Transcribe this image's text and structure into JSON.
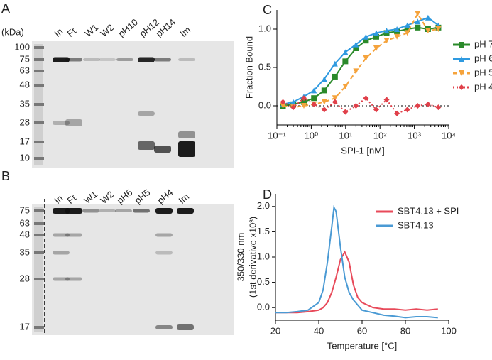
{
  "gels": [
    {
      "letter": "A",
      "unit": "(kDa)",
      "markers": [
        100,
        75,
        63,
        48,
        35,
        28,
        17,
        10
      ],
      "lanes": [
        "In",
        "Ft",
        "W1",
        "W2",
        "pH10",
        "pH12",
        "pH14",
        "Im"
      ]
    },
    {
      "letter": "B",
      "markers": [
        75,
        63,
        48,
        35,
        28,
        17
      ],
      "lanes": [
        "In",
        "Ft",
        "W1",
        "W2",
        "pH6",
        "pH5",
        "pH4",
        "Im"
      ]
    }
  ],
  "chart_data": [
    {
      "type": "line",
      "letter": "C",
      "xlabel": "SPI-1  [nM]",
      "ylabel": "Fraction Bound",
      "xscale": "log",
      "xlim": [
        0.1,
        10000
      ],
      "xticks": [
        {
          "value": 0.1,
          "label": "10⁻¹"
        },
        {
          "value": 1,
          "label": "10⁰"
        },
        {
          "value": 10,
          "label": "10¹"
        },
        {
          "value": 100,
          "label": "10²"
        },
        {
          "value": 1000,
          "label": "10³"
        },
        {
          "value": 10000,
          "label": "10⁴"
        }
      ],
      "ylim": [
        -0.25,
        1.25
      ],
      "yticks": [
        {
          "value": 0,
          "label": "0.0"
        },
        0.5,
        {
          "value": 1,
          "label": "1.0"
        }
      ],
      "hline": 0,
      "legend": "right",
      "x": [
        0.15,
        0.3,
        0.61,
        1.2,
        2.4,
        4.9,
        9.8,
        20,
        39,
        78,
        156,
        312,
        625,
        1250,
        2500,
        5000
      ],
      "series": [
        {
          "name": "pH 7",
          "color": "#2a8a2a",
          "marker": "square",
          "linestyle": "solid",
          "values": [
            0.0,
            0.02,
            0.05,
            0.1,
            0.2,
            0.38,
            0.58,
            0.75,
            0.85,
            0.9,
            0.95,
            0.97,
            1.0,
            1.02,
            1.0,
            1.02
          ]
        },
        {
          "name": "pH 6",
          "color": "#2f9ae0",
          "marker": "triangle",
          "linestyle": "solid",
          "values": [
            0.02,
            0.05,
            0.12,
            0.2,
            0.35,
            0.55,
            0.7,
            0.8,
            0.9,
            0.95,
            0.98,
            1.0,
            1.05,
            1.1,
            1.15,
            1.05
          ]
        },
        {
          "name": "pH 5",
          "color": "#f5a33c",
          "marker": "triangle-down",
          "linestyle": "dashed",
          "values": [
            0.0,
            -0.02,
            0.0,
            0.02,
            0.05,
            0.1,
            0.25,
            0.45,
            0.62,
            0.75,
            0.85,
            0.9,
            0.95,
            1.2,
            0.98,
            1.0
          ]
        },
        {
          "name": "pH 4",
          "color": "#e0404a",
          "marker": "diamond",
          "linestyle": "dotted",
          "values": [
            0.05,
            -0.02,
            0.1,
            0.02,
            -0.05,
            0.05,
            -0.08,
            0.0,
            0.1,
            -0.05,
            0.08,
            -0.1,
            -0.05,
            0.0,
            0.02,
            -0.02
          ]
        }
      ]
    },
    {
      "type": "line",
      "letter": "D",
      "xlabel": "Temperature [°C]",
      "ylabel": "350/330 nm",
      "ylabel2": "(1st derivative x10³)",
      "xlim": [
        20,
        100
      ],
      "xticks": [
        20,
        40,
        60,
        80,
        100
      ],
      "ylim": [
        -0.25,
        2.25
      ],
      "yticks": [
        {
          "value": 0,
          "label": "0.0"
        },
        0.5,
        {
          "value": 1,
          "label": "1.0"
        },
        1.5,
        {
          "value": 2,
          "label": "2.0"
        }
      ],
      "legend": "upper right",
      "x": [
        20,
        25,
        30,
        35,
        40,
        42,
        44,
        46,
        47,
        48,
        50,
        52,
        54,
        56,
        58,
        60,
        65,
        70,
        75,
        80,
        85,
        90,
        95
      ],
      "series": [
        {
          "name": "SBT4.13 + SPI",
          "color": "#e84a5a",
          "linestyle": "solid",
          "values": [
            -0.1,
            -0.1,
            -0.1,
            -0.08,
            -0.05,
            0.0,
            0.1,
            0.3,
            0.45,
            0.6,
            0.95,
            1.1,
            0.9,
            0.45,
            0.2,
            0.1,
            0.0,
            -0.03,
            -0.03,
            -0.05,
            -0.03,
            -0.05,
            -0.03
          ]
        },
        {
          "name": "SBT4.13",
          "color": "#4a9ad4",
          "linestyle": "solid",
          "values": [
            -0.1,
            -0.1,
            -0.08,
            -0.05,
            0.1,
            0.35,
            0.9,
            1.6,
            1.98,
            1.9,
            1.2,
            0.6,
            0.3,
            0.15,
            0.05,
            -0.05,
            -0.1,
            -0.15,
            -0.17,
            -0.2,
            -0.18,
            -0.18,
            -0.2
          ]
        }
      ]
    }
  ]
}
